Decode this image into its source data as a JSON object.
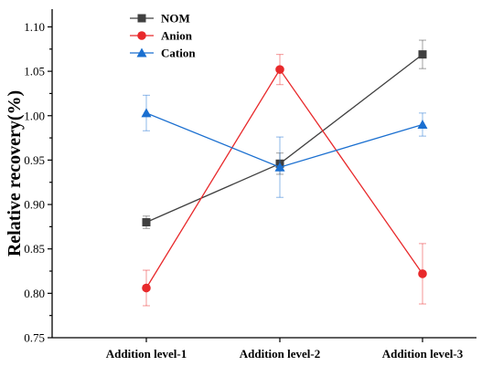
{
  "chart_data": {
    "type": "line",
    "title": "",
    "xlabel": "",
    "ylabel": "Relative recovery(%)",
    "categories": [
      "Addition level-1",
      "Addition level-2",
      "Addition level-3"
    ],
    "ylim": [
      0.75,
      1.12
    ],
    "yticks": [
      0.75,
      0.8,
      0.85,
      0.9,
      0.95,
      1.0,
      1.05,
      1.1
    ],
    "ytick_labels": [
      "0.75",
      "0.80",
      "0.85",
      "0.90",
      "0.95",
      "1.00",
      "1.05",
      "1.10"
    ],
    "grid": false,
    "legend_position": "top-left",
    "series": [
      {
        "name": "NOM",
        "values": [
          0.88,
          0.946,
          1.069
        ],
        "errors": [
          0.007,
          0.012,
          0.016
        ],
        "color": "#404040",
        "marker": "square"
      },
      {
        "name": "Anion",
        "values": [
          0.806,
          1.052,
          0.822
        ],
        "errors": [
          0.02,
          0.017,
          0.034
        ],
        "color": "#e8292b",
        "marker": "circle"
      },
      {
        "name": "Cation",
        "values": [
          1.003,
          0.942,
          0.99
        ],
        "errors": [
          0.02,
          0.034,
          0.013
        ],
        "color": "#1a6fd0",
        "marker": "triangle"
      }
    ]
  }
}
